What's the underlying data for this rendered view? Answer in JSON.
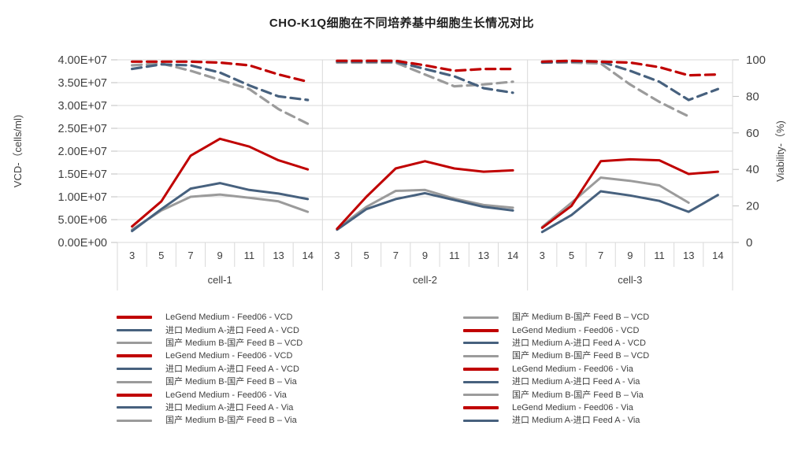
{
  "title": "CHO-K1Q细胞在不同培养基中细胞生长情况对比",
  "palette": {
    "red": "#c00000",
    "blue": "#47617e",
    "gray": "#9b9b9b",
    "grid": "#d9d9d9",
    "tick": "#bfbfbf",
    "text": "#404040"
  },
  "chart_data": {
    "type": "line",
    "title": "CHO-K1Q细胞在不同培养基中细胞生长情况对比",
    "y_left": {
      "label": "VCD-（cells/ml)",
      "min": 0,
      "max": 40000000,
      "ticks": [
        "4.00E+07",
        "3.50E+07",
        "3.00E+07",
        "2.50E+07",
        "2.00E+07",
        "1.50E+07",
        "1.00E+07",
        "5.00E+06",
        "0.00E+00"
      ]
    },
    "y_right": {
      "label": "Viability-（%)",
      "min": 0,
      "max": 100,
      "ticks": [
        "100",
        "80",
        "60",
        "40",
        "20",
        "0"
      ]
    },
    "x": {
      "day_labels": [
        "3",
        "5",
        "7",
        "9",
        "11",
        "13",
        "14"
      ],
      "group_labels": [
        "cell-1",
        "cell-2",
        "cell-3"
      ]
    },
    "grid": true,
    "legend_position": "bottom",
    "panels": [
      {
        "group": "cell-1",
        "vcd": {
          "legend": [
            3500000,
            9000000,
            19000000,
            22700000,
            21000000,
            18000000,
            16000000
          ],
          "import": [
            2500000,
            7300000,
            11800000,
            13000000,
            11500000,
            10700000,
            9500000
          ],
          "domestic": [
            2800000,
            7000000,
            10000000,
            10500000,
            9800000,
            9000000,
            6700000
          ]
        },
        "via": {
          "legend": [
            99,
            99,
            99,
            98.5,
            97,
            92,
            88
          ],
          "import": [
            95,
            97.5,
            97,
            93,
            86,
            80,
            78
          ],
          "domestic": [
            97,
            98,
            94,
            89,
            84,
            73,
            65
          ]
        }
      },
      {
        "group": "cell-2",
        "vcd": {
          "legend": [
            3000000,
            10000000,
            16200000,
            17800000,
            16200000,
            15500000,
            15800000
          ],
          "import": [
            2800000,
            7300000,
            9500000,
            10800000,
            9300000,
            7800000,
            7000000
          ],
          "domestic": [
            3000000,
            7800000,
            11300000,
            11500000,
            9600000,
            8200000,
            7600000
          ]
        },
        "via": {
          "legend": [
            99.5,
            99.5,
            99.5,
            97,
            94,
            95,
            95
          ],
          "import": [
            99,
            99,
            99,
            95,
            91,
            84.5,
            82
          ],
          "domestic": [
            98.5,
            98.5,
            98.5,
            92,
            85.5,
            86.5,
            88
          ]
        }
      },
      {
        "group": "cell-3",
        "vcd": {
          "legend": [
            3200000,
            8000000,
            17800000,
            18200000,
            18000000,
            15000000,
            15500000
          ],
          "import": [
            2300000,
            6000000,
            11200000,
            10300000,
            9100000,
            6700000,
            10400000
          ],
          "domestic": [
            3400000,
            8700000,
            14200000,
            13500000,
            12500000,
            8700000,
            null
          ]
        },
        "via": {
          "legend": [
            99,
            99.5,
            99,
            98.5,
            96,
            91.5,
            92
          ],
          "import": [
            98.5,
            99,
            99,
            94,
            88,
            78,
            84
          ],
          "domestic": [
            98.5,
            98.5,
            98,
            86.5,
            77,
            69,
            null
          ]
        }
      }
    ]
  },
  "legend": {
    "columns": [
      {
        "items": [
          {
            "color_key": "red",
            "label": "LeGend Medium - Feed06 - VCD"
          },
          {
            "color_key": "blue",
            "label": "进口 Medium A-进口 Feed A - VCD"
          },
          {
            "color_key": "gray",
            "label": "国产 Medium B-国产 Feed B – VCD"
          },
          {
            "color_key": "red",
            "label": "LeGend Medium - Feed06 - VCD"
          },
          {
            "color_key": "blue",
            "label": "进口 Medium A-进口 Feed A - VCD"
          },
          {
            "color_key": "gray",
            "label": "国产 Medium B-国产 Feed B – Via"
          },
          {
            "color_key": "red",
            "label": "LeGend Medium - Feed06 - Via"
          },
          {
            "color_key": "blue",
            "label": "进口 Medium A-进口 Feed A - Via"
          },
          {
            "color_key": "gray",
            "label": "国产 Medium B-国产 Feed B – Via"
          }
        ]
      },
      {
        "items": [
          {
            "color_key": "gray",
            "label": "国产 Medium B-国产 Feed B – VCD"
          },
          {
            "color_key": "red",
            "label": "LeGend Medium - Feed06 - VCD"
          },
          {
            "color_key": "blue",
            "label": "进口 Medium A-进口 Feed A - VCD"
          },
          {
            "color_key": "gray",
            "label": "国产 Medium B-国产 Feed B – VCD"
          },
          {
            "color_key": "red",
            "label": "LeGend Medium - Feed06 - Via"
          },
          {
            "color_key": "blue",
            "label": "进口 Medium A-进口 Feed A - Via"
          },
          {
            "color_key": "gray",
            "label": "国产 Medium B-国产 Feed B – Via"
          },
          {
            "color_key": "red",
            "label": "LeGend Medium - Feed06 - Via"
          },
          {
            "color_key": "blue",
            "label": "进口 Medium A-进口 Feed A - Via"
          }
        ]
      }
    ]
  }
}
